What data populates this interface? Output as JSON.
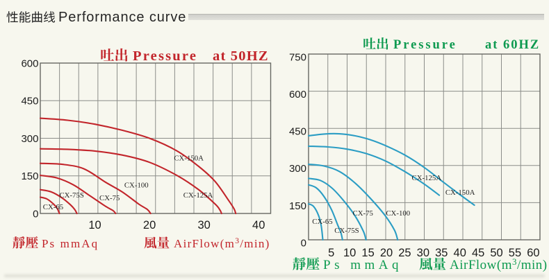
{
  "header": {
    "title_cjk": "性能曲线",
    "title_en": "Performance curve"
  },
  "colors": {
    "background": "#f7f7ee",
    "header_text": "#222222",
    "rule_bar": "#d2d2cd",
    "grid_line": "#8b8d89",
    "plot_border": "#666862",
    "axis_tick_text": "#1c1c1c",
    "curve_label_text": "#1f1f1f",
    "accent_50hz": "#c2252b",
    "accent_60hz": "#0e9a50",
    "curve_60hz": "#2b9dc4"
  },
  "chart_data": [
    {
      "id": "50hz",
      "type": "line",
      "title": {
        "cjk": "吐出",
        "en": "Pressure",
        "freq": "at 50HZ"
      },
      "xlabel_pressure": {
        "cjk": "靜壓",
        "en": "Ps mmAq"
      },
      "xlabel_flow": {
        "cjk": "風量",
        "en_prefix": "AirFlow(m",
        "en_sup": "3",
        "en_suffix": "/min)"
      },
      "x_axis": {
        "ticks": [
          10,
          20,
          30,
          40
        ],
        "max": 42.2,
        "grid_divisions": 12
      },
      "y_axis": {
        "ticks": [
          0,
          150,
          300,
          450,
          600
        ],
        "max": 600
      },
      "series": [
        {
          "name": "CX-65",
          "points": [
            [
              0,
              65
            ],
            [
              1.2,
              58
            ],
            [
              2.4,
              38
            ],
            [
              3.1,
              20
            ],
            [
              3.5,
              0
            ]
          ],
          "label_at": [
            2.35,
            28
          ]
        },
        {
          "name": "CX-75S",
          "points": [
            [
              0,
              95
            ],
            [
              2,
              86
            ],
            [
              4,
              62
            ],
            [
              5.5,
              35
            ],
            [
              6.3,
              16
            ],
            [
              6.7,
              0
            ]
          ],
          "label_at": [
            5.75,
            75
          ]
        },
        {
          "name": "CX-75",
          "points": [
            [
              0,
              152
            ],
            [
              3,
              142
            ],
            [
              6,
              115
            ],
            [
              9,
              72
            ],
            [
              12,
              28
            ],
            [
              13.3,
              12
            ],
            [
              13.8,
              0
            ]
          ],
          "label_at": [
            12.7,
            64
          ]
        },
        {
          "name": "CX-100",
          "points": [
            [
              0,
              200
            ],
            [
              4,
              196
            ],
            [
              8,
              178
            ],
            [
              12,
              124
            ],
            [
              15,
              86
            ],
            [
              18,
              38
            ],
            [
              19.6,
              16
            ],
            [
              20.2,
              0
            ]
          ],
          "label_at": [
            17.6,
            115
          ]
        },
        {
          "name": "CX-125A",
          "points": [
            [
              0,
              258
            ],
            [
              5,
              256
            ],
            [
              10,
              249
            ],
            [
              15,
              233
            ],
            [
              20,
              204
            ],
            [
              25,
              152
            ],
            [
              29,
              95
            ],
            [
              32,
              38
            ],
            [
              32.9,
              14
            ],
            [
              33.2,
              0
            ]
          ],
          "label_at": [
            28.9,
            75
          ]
        },
        {
          "name": "CX-150A",
          "points": [
            [
              0,
              380
            ],
            [
              5,
              372
            ],
            [
              10,
              356
            ],
            [
              15,
              332
            ],
            [
              20,
              300
            ],
            [
              25,
              250
            ],
            [
              29,
              188
            ],
            [
              32,
              128
            ],
            [
              34.5,
              52
            ],
            [
              35.5,
              18
            ],
            [
              35.8,
              0
            ]
          ],
          "label_at": [
            27.2,
            223
          ]
        }
      ]
    },
    {
      "id": "60hz",
      "type": "line",
      "title": {
        "cjk": "吐出",
        "en": "Pressure",
        "freq": "at 60HZ"
      },
      "xlabel_pressure": {
        "cjk": "靜壓",
        "en": "Ps mmAq"
      },
      "xlabel_flow": {
        "cjk": "風量",
        "en_prefix": "AirFlow(m",
        "en_sup": "3",
        "en_suffix": "/min)"
      },
      "x_axis": {
        "ticks": [
          5,
          10,
          15,
          20,
          25,
          30,
          35,
          40,
          45,
          50,
          55,
          60
        ],
        "max": 60,
        "grid_divisions": 12
      },
      "y_axis": {
        "ticks": [
          0,
          150,
          300,
          450,
          600,
          750
        ],
        "max": 750
      },
      "series": [
        {
          "name": "CX-65",
          "points": [
            [
              0,
              145
            ],
            [
              1.3,
              135
            ],
            [
              2.6,
              98
            ],
            [
              3.3,
              55
            ],
            [
              3.7,
              0
            ]
          ],
          "label_at": [
            3.6,
            76
          ]
        },
        {
          "name": "CX-75S",
          "points": [
            [
              0,
              222
            ],
            [
              2,
              210
            ],
            [
              4,
              175
            ],
            [
              6,
              120
            ],
            [
              7.5,
              62
            ],
            [
              8.4,
              28
            ],
            [
              8.8,
              0
            ]
          ],
          "label_at": [
            9.9,
            39
          ]
        },
        {
          "name": "CX-75",
          "points": [
            [
              0,
              248
            ],
            [
              3,
              240
            ],
            [
              6,
              210
            ],
            [
              9,
              160
            ],
            [
              12,
              98
            ],
            [
              14.2,
              35
            ],
            [
              14.9,
              0
            ]
          ],
          "label_at": [
            14.1,
            109
          ]
        },
        {
          "name": "CX-100",
          "points": [
            [
              0,
              305
            ],
            [
              4,
              298
            ],
            [
              8,
              276
            ],
            [
              12,
              230
            ],
            [
              16,
              168
            ],
            [
              20,
              95
            ],
            [
              22.3,
              38
            ],
            [
              23.1,
              0
            ]
          ],
          "label_at": [
            23.2,
            109
          ]
        },
        {
          "name": "CX-125A",
          "points": [
            [
              0,
              378
            ],
            [
              5,
              375
            ],
            [
              10,
              366
            ],
            [
              15,
              348
            ],
            [
              20,
              318
            ],
            [
              25,
              275
            ],
            [
              30,
              225
            ],
            [
              33.9,
              180
            ]
          ],
          "label_at": [
            30.6,
            252
          ]
        },
        {
          "name": "CX-150A",
          "points": [
            [
              0,
              420
            ],
            [
              4,
              427
            ],
            [
              8,
              428
            ],
            [
              12,
              420
            ],
            [
              16,
              404
            ],
            [
              20,
              380
            ],
            [
              25,
              342
            ],
            [
              30,
              292
            ],
            [
              35,
              232
            ],
            [
              39,
              185
            ],
            [
              43,
              140
            ]
          ],
          "label_at": [
            39.3,
            193
          ]
        }
      ]
    }
  ]
}
